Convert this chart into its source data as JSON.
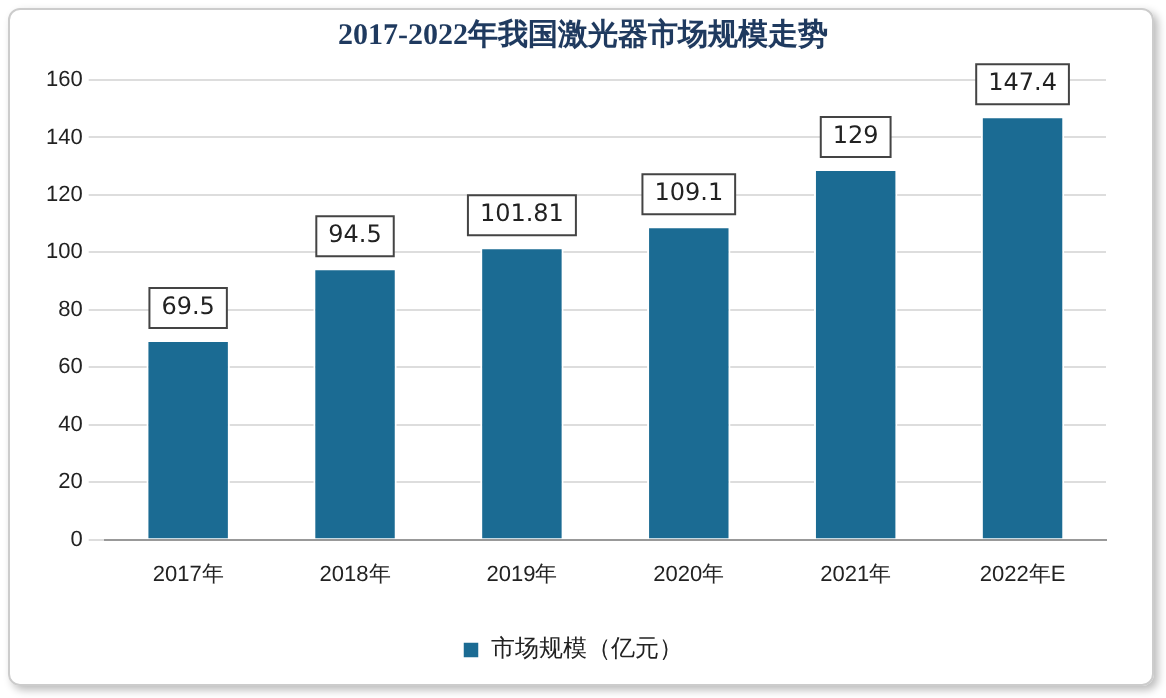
{
  "chart_data": {
    "type": "bar",
    "title": "2017-2022年我国激光器市场规模走势",
    "categories": [
      "2017年",
      "2018年",
      "2019年",
      "2020年",
      "2021年",
      "2022年E"
    ],
    "series": [
      {
        "name": "市场规模（亿元）",
        "color": "#1b6b93",
        "values": [
          69.5,
          94.5,
          101.81,
          109.1,
          129,
          147.4
        ]
      }
    ],
    "ylim": [
      0,
      160
    ],
    "yticks": [
      0,
      20,
      40,
      60,
      80,
      100,
      120,
      140,
      160
    ],
    "grid": "y",
    "legend": "bottom",
    "data_labels": true
  }
}
